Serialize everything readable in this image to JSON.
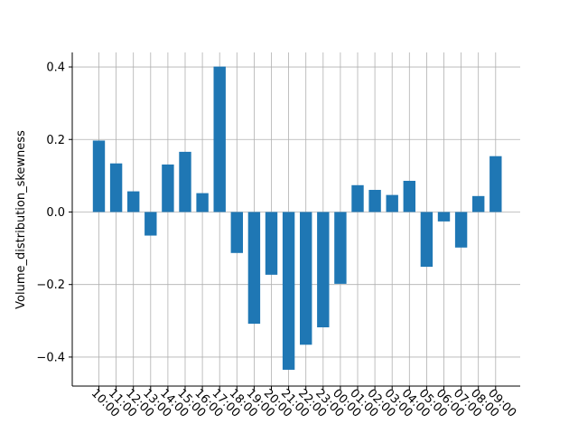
{
  "chart_data": {
    "type": "bar",
    "title": "",
    "xlabel": "",
    "ylabel": "Volume_distribution_skewness",
    "categories": [
      "10:00",
      "11:00",
      "12:00",
      "13:00",
      "14:00",
      "15:00",
      "16:00",
      "17:00",
      "18:00",
      "19:00",
      "20:00",
      "21:00",
      "22:00",
      "23:00",
      "00:00",
      "01:00",
      "02:00",
      "03:00",
      "04:00",
      "05:00",
      "06:00",
      "07:00",
      "08:00",
      "09:00"
    ],
    "values": [
      0.197,
      0.134,
      0.057,
      -0.065,
      0.131,
      0.166,
      0.052,
      0.401,
      -0.113,
      -0.308,
      -0.173,
      -0.435,
      -0.366,
      -0.318,
      -0.198,
      0.074,
      0.061,
      0.047,
      0.086,
      -0.151,
      -0.026,
      -0.098,
      0.044,
      0.154
    ],
    "ylim": [
      -0.48,
      0.44
    ],
    "yticks": [
      -0.4,
      -0.2,
      0.0,
      0.2,
      0.4
    ],
    "ytick_labels": [
      "−0.4",
      "−0.2",
      "0.0",
      "0.2",
      "0.4"
    ],
    "grid": true,
    "bar_color": "#1f77b4",
    "grid_color": "#b0b0b0"
  }
}
